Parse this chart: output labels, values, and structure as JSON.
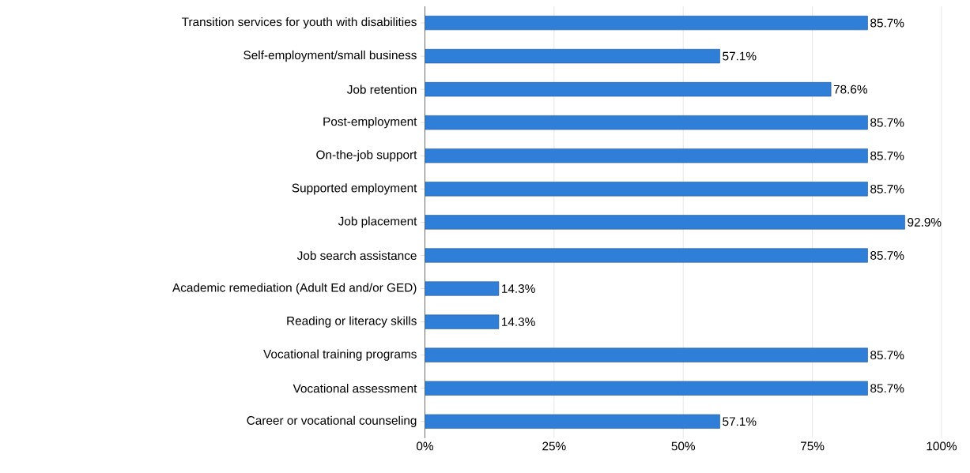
{
  "chart_data": {
    "type": "bar",
    "orientation": "horizontal",
    "categories": [
      "Transition services for youth with disabilities",
      "Self-employment/small business",
      "Job retention",
      "Post-employment",
      "On-the-job support",
      "Supported employment",
      "Job placement",
      "Job search assistance",
      "Academic remediation (Adult Ed and/or GED)",
      "Reading or literacy skills",
      "Vocational training programs",
      "Vocational assessment",
      "Career or vocational counseling"
    ],
    "values": [
      85.7,
      57.1,
      78.6,
      85.7,
      85.7,
      85.7,
      92.9,
      85.7,
      14.3,
      14.3,
      85.7,
      85.7,
      57.1
    ],
    "value_labels": [
      "85.7%",
      "57.1%",
      "78.6%",
      "85.7%",
      "85.7%",
      "85.7%",
      "92.9%",
      "85.7%",
      "14.3%",
      "14.3%",
      "85.7%",
      "85.7%",
      "57.1%"
    ],
    "color": "#2f7fd8",
    "xlim": [
      0,
      100
    ],
    "xticks": [
      {
        "value": 0,
        "label": "0%"
      },
      {
        "value": 25,
        "label": "25%"
      },
      {
        "value": 50,
        "label": "50%"
      },
      {
        "value": 75,
        "label": "75%"
      },
      {
        "value": 100,
        "label": "100%"
      }
    ],
    "grid": "x"
  }
}
